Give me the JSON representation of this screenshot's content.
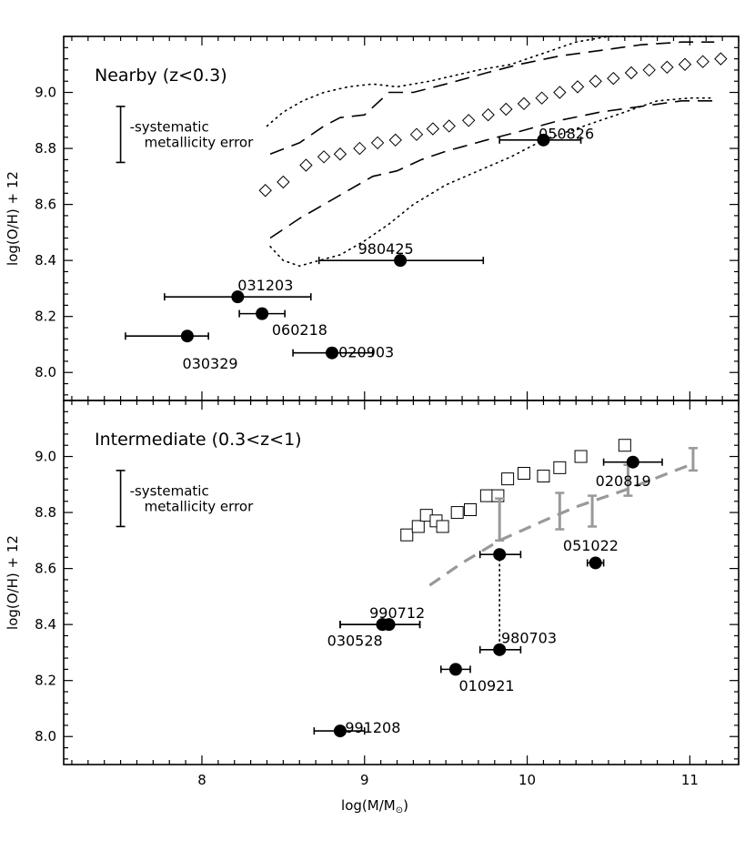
{
  "chart_data": {
    "type": "scatter",
    "xlabel": "log(M/M",
    "xlabel_sub": "⊙",
    "xlabel_close": ")",
    "xlim": [
      7.15,
      11.3
    ],
    "xticks": [
      8,
      9,
      10,
      11
    ],
    "panels": [
      {
        "title": "Nearby (z<0.3)",
        "ylabel": "log(O/H) + 12",
        "ylim": [
          7.9,
          9.2
        ],
        "yticks": [
          8.0,
          8.2,
          8.4,
          8.6,
          8.8,
          9.0
        ],
        "systematic_error": {
          "x": 7.5,
          "center": 8.85,
          "half": 0.1,
          "line1": "-systematic",
          "line2": "metallicity error"
        },
        "points": [
          {
            "label": "050826",
            "x": 10.1,
            "y": 8.83,
            "xerr": [
              9.83,
              10.33
            ],
            "label_x": 10.07,
            "label_y": 8.85
          },
          {
            "label": "980425",
            "x": 9.22,
            "y": 8.4,
            "xerr": [
              8.72,
              9.73
            ],
            "label_x": 8.96,
            "label_y": 8.44
          },
          {
            "label": "031203",
            "x": 8.22,
            "y": 8.27,
            "xerr": [
              7.77,
              8.67
            ],
            "label_x": 8.22,
            "label_y": 8.31
          },
          {
            "label": "060218",
            "x": 8.37,
            "y": 8.21,
            "xerr": [
              8.23,
              8.51
            ],
            "label_x": 8.43,
            "label_y": 8.15
          },
          {
            "label": "030329",
            "x": 7.91,
            "y": 8.13,
            "xerr": [
              7.53,
              8.04
            ],
            "label_x": 7.88,
            "label_y": 8.03
          },
          {
            "label": "020903",
            "x": 8.8,
            "y": 8.07,
            "xerr": [
              8.56,
              9.05
            ],
            "label_x": 8.84,
            "label_y": 8.07
          }
        ],
        "diamonds": {
          "x": [
            8.39,
            8.5,
            8.64,
            8.75,
            8.85,
            8.97,
            9.08,
            9.19,
            9.32,
            9.42,
            9.52,
            9.64,
            9.76,
            9.87,
            9.98,
            10.09,
            10.2,
            10.31,
            10.42,
            10.53,
            10.64,
            10.75,
            10.86,
            10.97,
            11.08,
            11.19
          ],
          "y": [
            8.65,
            8.68,
            8.74,
            8.77,
            8.78,
            8.8,
            8.82,
            8.83,
            8.85,
            8.87,
            8.88,
            8.9,
            8.92,
            8.94,
            8.96,
            8.98,
            9.0,
            9.02,
            9.04,
            9.05,
            9.07,
            9.08,
            9.09,
            9.1,
            9.11,
            9.12
          ]
        },
        "dashed_upper": {
          "x": [
            8.42,
            8.6,
            8.75,
            8.85,
            9.0,
            9.15,
            9.3,
            9.5,
            9.75,
            9.95,
            10.2,
            10.45,
            10.7,
            10.95,
            11.15
          ],
          "y": [
            8.78,
            8.82,
            8.88,
            8.91,
            8.92,
            9.0,
            9.0,
            9.03,
            9.07,
            9.1,
            9.13,
            9.15,
            9.17,
            9.18,
            9.18
          ]
        },
        "dashed_lower": {
          "x": [
            8.42,
            8.6,
            8.75,
            8.9,
            9.05,
            9.2,
            9.35,
            9.5,
            9.75,
            9.95,
            10.2,
            10.45,
            10.7,
            10.95,
            11.15
          ],
          "y": [
            8.48,
            8.55,
            8.6,
            8.65,
            8.7,
            8.72,
            8.76,
            8.79,
            8.83,
            8.86,
            8.9,
            8.93,
            8.95,
            8.97,
            8.97
          ]
        },
        "dotted_upper": {
          "x": [
            8.4,
            8.5,
            8.62,
            8.75,
            8.9,
            9.05,
            9.2,
            9.4,
            9.55,
            9.7,
            9.9,
            10.1,
            10.3,
            10.5,
            10.7,
            10.9,
            11.15
          ],
          "y": [
            8.88,
            8.93,
            8.97,
            9.0,
            9.02,
            9.03,
            9.02,
            9.04,
            9.06,
            9.08,
            9.1,
            9.14,
            9.18,
            9.2,
            9.2,
            9.2,
            9.2
          ]
        },
        "dotted_lower": {
          "x": [
            8.42,
            8.5,
            8.6,
            8.72,
            8.85,
            9.0,
            9.15,
            9.3,
            9.5,
            9.7,
            9.9,
            10.1,
            10.3,
            10.55,
            10.8,
            11.0,
            11.15
          ],
          "y": [
            8.45,
            8.4,
            8.38,
            8.4,
            8.42,
            8.47,
            8.53,
            8.6,
            8.67,
            8.72,
            8.77,
            8.83,
            8.87,
            8.92,
            8.97,
            8.98,
            8.98
          ]
        }
      },
      {
        "title": "Intermediate (0.3<z<1)",
        "ylabel": "log(O/H) + 12",
        "ylim": [
          7.9,
          9.2
        ],
        "yticks": [
          8.0,
          8.2,
          8.4,
          8.6,
          8.8,
          9.0
        ],
        "systematic_error": {
          "x": 7.5,
          "center": 8.85,
          "half": 0.1,
          "line1": "-systematic",
          "line2": "metallicity error"
        },
        "points": [
          {
            "label": "020819",
            "x": 10.65,
            "y": 8.98,
            "xerr": [
              10.47,
              10.83
            ],
            "label_x": 10.42,
            "label_y": 8.91
          },
          {
            "label": "051022",
            "x": 10.42,
            "y": 8.62,
            "xerr": [
              10.37,
              10.47
            ],
            "label_x": 10.22,
            "label_y": 8.68
          },
          {
            "label": "990712",
            "x": 9.15,
            "y": 8.4,
            "xerr": [
              8.85,
              9.34
            ],
            "label_x": 9.03,
            "label_y": 8.44
          },
          {
            "label": "030528",
            "x": 9.11,
            "y": 8.4,
            "xerr": [
              8.85,
              9.34
            ],
            "label_x": 8.77,
            "label_y": 8.34
          },
          {
            "label": "980703",
            "x": 9.83,
            "y": 8.31,
            "xerr": [
              9.71,
              9.96
            ],
            "label_x": 9.84,
            "label_y": 8.35
          },
          {
            "label": "010921",
            "x": 9.56,
            "y": 8.24,
            "xerr": [
              9.47,
              9.65
            ],
            "label_x": 9.58,
            "label_y": 8.18
          },
          {
            "label": "991208",
            "x": 8.85,
            "y": 8.02,
            "xerr": [
              8.69,
              9.0
            ],
            "label_x": 8.88,
            "label_y": 8.03
          },
          {
            "label": "",
            "x": 9.83,
            "y": 8.65,
            "xerr": [
              9.71,
              9.96
            ]
          }
        ],
        "squares": {
          "x": [
            9.26,
            9.33,
            9.38,
            9.44,
            9.48,
            9.57,
            9.65,
            9.75,
            9.82,
            9.88,
            9.98,
            10.1,
            10.2,
            10.33,
            10.6
          ],
          "y": [
            8.72,
            8.75,
            8.79,
            8.77,
            8.75,
            8.8,
            8.81,
            8.86,
            8.86,
            8.92,
            8.94,
            8.93,
            8.96,
            9.0,
            9.04
          ]
        },
        "gray_dashed": {
          "x": [
            9.4,
            9.6,
            9.83,
            10.1,
            10.3,
            10.6,
            11.0
          ],
          "y": [
            8.54,
            8.62,
            8.7,
            8.77,
            8.82,
            8.88,
            8.97
          ]
        },
        "gray_errorbars": [
          {
            "x": 9.83,
            "lo": 8.7,
            "hi": 8.85
          },
          {
            "x": 10.2,
            "lo": 8.74,
            "hi": 8.87
          },
          {
            "x": 10.4,
            "lo": 8.75,
            "hi": 8.86
          },
          {
            "x": 10.62,
            "lo": 8.86,
            "hi": 8.97
          },
          {
            "x": 11.02,
            "lo": 8.95,
            "hi": 9.03
          }
        ],
        "dotted_connector": {
          "x": 9.83,
          "y1": 8.65,
          "y2": 8.31
        }
      }
    ]
  }
}
